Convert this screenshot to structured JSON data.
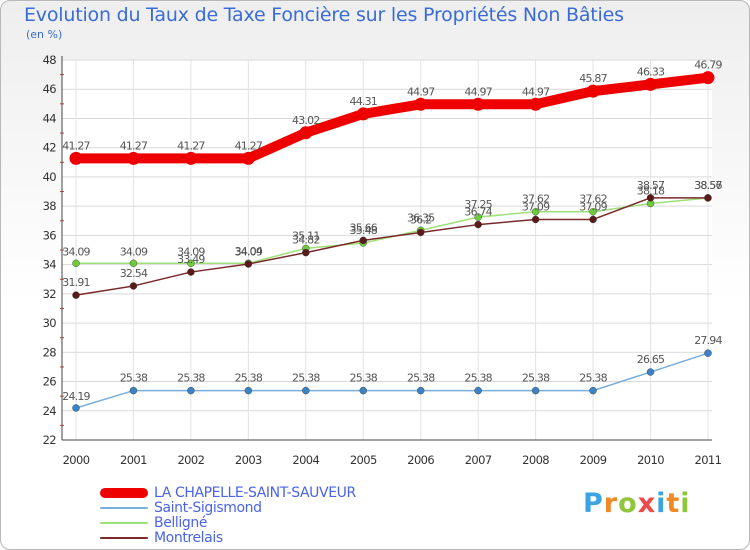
{
  "title": "Evolution du Taux de Taxe Foncière sur les Propriétés Non Bâties",
  "unit_label": "(en %)",
  "logo": {
    "letters": [
      "P",
      "r",
      "o",
      "x",
      "i",
      "t",
      "i"
    ],
    "colors": [
      "#3aa3e0",
      "#ef8a23",
      "#8fc63c",
      "#ef4a4a",
      "#3aa3e0",
      "#ef8a23",
      "#8fc63c"
    ]
  },
  "chart_data": {
    "type": "line",
    "title": "Evolution du Taux de Taxe Foncière sur les Propriétés Non Bâties",
    "ylabel": "(en %)",
    "xlabel": "",
    "x": [
      "2000",
      "2001",
      "2002",
      "2003",
      "2004",
      "2005",
      "2006",
      "2007",
      "2008",
      "2009",
      "2010",
      "2011"
    ],
    "ylim": [
      22,
      48
    ],
    "yticks": [
      22,
      24,
      26,
      28,
      30,
      32,
      34,
      36,
      38,
      40,
      42,
      44,
      46,
      48
    ],
    "grid": true,
    "series": [
      {
        "name": "LA CHAPELLE-SAINT-SAUVEUR",
        "color": "#ee0000",
        "marker": "#ee0000",
        "values": [
          41.27,
          41.27,
          41.27,
          41.27,
          43.02,
          44.31,
          44.97,
          44.97,
          44.97,
          45.87,
          46.33,
          46.79
        ],
        "labels": [
          "41.27",
          "41.27",
          "41.27",
          "41.27",
          "43.02",
          "44.31",
          "44.97",
          "44.97",
          "44.97",
          "45.87",
          "46.33",
          "46.79"
        ]
      },
      {
        "name": "Saint-Sigismond",
        "color": "#7aaedc",
        "marker": "#3c83c4",
        "values": [
          24.19,
          25.38,
          25.38,
          25.38,
          25.38,
          25.38,
          25.38,
          25.38,
          25.38,
          25.38,
          26.65,
          27.94
        ],
        "labels": [
          "24.19",
          "25.38",
          "25.38",
          "25.38",
          "25.38",
          "25.38",
          "25.38",
          "25.38",
          "25.38",
          "25.38",
          "26.65",
          "27.94"
        ]
      },
      {
        "name": "Belligné",
        "color": "#9ee07a",
        "marker": "#6fcb3c",
        "values": [
          34.09,
          34.09,
          34.09,
          34.09,
          35.11,
          35.48,
          36.35,
          37.25,
          37.62,
          37.62,
          38.18,
          38.56
        ],
        "labels": [
          "34.09",
          "34.09",
          "34.09",
          "34.09",
          "35.11",
          "35.48",
          "36.35",
          "37.25",
          "37.62",
          "37.62",
          "38.18",
          "38.56"
        ]
      },
      {
        "name": "Montrelais",
        "color": "#7a2a2a",
        "marker": "#5a1a1a",
        "values": [
          31.91,
          32.54,
          33.49,
          34.04,
          34.82,
          35.66,
          36.2,
          36.74,
          37.09,
          37.09,
          38.57,
          38.57
        ],
        "labels": [
          "31.91",
          "32.54",
          "33.49",
          "34.04",
          "34.82",
          "35.66",
          "36.2",
          "36.74",
          "37.09",
          "37.09",
          "38.57",
          "38.57"
        ]
      }
    ]
  }
}
